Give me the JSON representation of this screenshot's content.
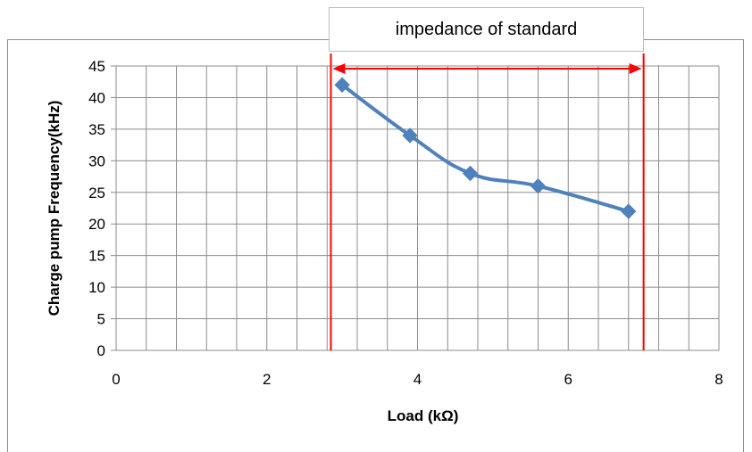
{
  "chart_data": {
    "type": "scatter",
    "title": "",
    "xlabel": "Load (kΩ)",
    "ylabel": "Charge pump Frequency(kHz)",
    "xlim": [
      0,
      8
    ],
    "ylim": [
      0,
      45
    ],
    "x_ticks": [
      0,
      2,
      4,
      6,
      8
    ],
    "y_ticks": [
      0,
      5,
      10,
      15,
      20,
      25,
      30,
      35,
      40,
      45
    ],
    "grid": true,
    "series": [
      {
        "x": [
          3.0,
          3.9,
          4.7,
          5.6,
          6.8
        ],
        "y": [
          42,
          34,
          28,
          26,
          22
        ],
        "color": "#4f81bd",
        "marker": "diamond",
        "line": "smooth"
      }
    ],
    "annotation": {
      "text": "impedance of standard",
      "x_range": [
        2.85,
        7.0
      ],
      "color": "#ff0000"
    }
  }
}
